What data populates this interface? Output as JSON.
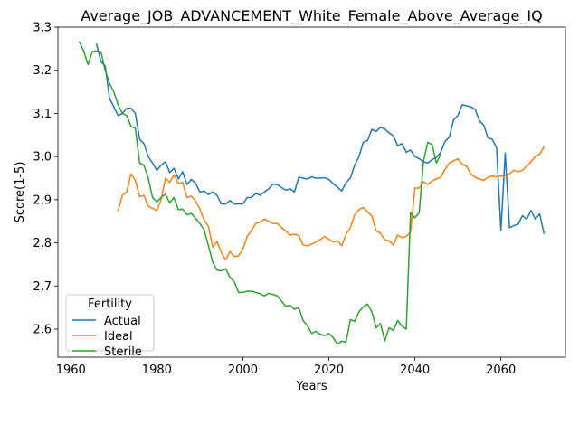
{
  "chart_data": {
    "type": "line",
    "title": "Average_JOB_ADVANCEMENT_White_Female_Above_Average_IQ",
    "xlabel": "Years",
    "ylabel": "Score(1-5)",
    "xlim": [
      1957,
      2075
    ],
    "ylim": [
      2.535,
      3.3
    ],
    "xticks": [
      1960,
      1980,
      2000,
      2020,
      2040,
      2060
    ],
    "yticks": [
      2.6,
      2.7,
      2.8,
      2.9,
      3.0,
      3.1,
      3.2,
      3.3
    ],
    "ytick_labels": [
      "2.6",
      "2.7",
      "2.8",
      "2.9",
      "3.0",
      "3.1",
      "3.2",
      "3.3"
    ],
    "grid": false,
    "legend": {
      "title": "Fertility",
      "position": "lower-left"
    },
    "series": [
      {
        "name": "Actual",
        "color": "#1f77b4",
        "x": [
          1966,
          1967,
          1968,
          1969,
          1970,
          1971,
          1972,
          1973,
          1974,
          1975,
          1976,
          1977,
          1978,
          1979,
          1980,
          1981,
          1982,
          1983,
          1984,
          1985,
          1986,
          1987,
          1988,
          1989,
          1990,
          1991,
          1992,
          1993,
          1994,
          1995,
          1996,
          1997,
          1998,
          1999,
          2000,
          2001,
          2002,
          2003,
          2004,
          2005,
          2006,
          2007,
          2008,
          2009,
          2010,
          2011,
          2012,
          2013,
          2014,
          2015,
          2016,
          2017,
          2018,
          2019,
          2020,
          2021,
          2022,
          2023,
          2024,
          2025,
          2026,
          2027,
          2028,
          2029,
          2030,
          2031,
          2032,
          2033,
          2034,
          2035,
          2036,
          2037,
          2038,
          2039,
          2040,
          2041,
          2042,
          2043,
          2044,
          2045,
          2046,
          2047,
          2048,
          2049,
          2050,
          2051,
          2052,
          2053,
          2054,
          2055,
          2056,
          2057,
          2058,
          2059,
          2060,
          2061,
          2062,
          2063,
          2064,
          2065,
          2066,
          2067,
          2068,
          2069,
          2070
        ],
        "values": [
          3.26,
          3.22,
          3.21,
          3.135,
          3.115,
          3.095,
          3.1,
          3.112,
          3.112,
          3.1,
          3.04,
          3.03,
          3.0,
          2.985,
          2.968,
          2.98,
          2.988,
          2.963,
          2.973,
          2.948,
          2.965,
          2.935,
          2.947,
          2.938,
          2.918,
          2.92,
          2.912,
          2.918,
          2.91,
          2.89,
          2.89,
          2.898,
          2.89,
          2.89,
          2.89,
          2.905,
          2.905,
          2.915,
          2.91,
          2.918,
          2.925,
          2.936,
          2.935,
          2.928,
          2.922,
          2.925,
          2.918,
          2.952,
          2.95,
          2.948,
          2.953,
          2.95,
          2.95,
          2.951,
          2.947,
          2.937,
          2.929,
          2.92,
          2.94,
          2.95,
          2.98,
          3.0,
          3.033,
          3.037,
          3.063,
          3.058,
          3.068,
          3.064,
          3.055,
          3.048,
          3.025,
          3.03,
          3.01,
          3.015,
          3.0,
          2.995,
          2.988,
          2.985,
          2.993,
          2.998,
          3.01,
          3.035,
          3.045,
          3.085,
          3.095,
          3.12,
          3.118,
          3.115,
          3.11,
          3.083,
          3.073,
          3.043,
          3.04,
          3.02,
          2.828,
          3.008,
          2.835,
          2.84,
          2.843,
          2.863,
          2.855,
          2.875,
          2.855,
          2.867,
          2.822
        ]
      },
      {
        "name": "Ideal",
        "color": "#ff7f0e",
        "x": [
          1971,
          1972,
          1973,
          1974,
          1975,
          1976,
          1977,
          1978,
          1979,
          1980,
          1981,
          1982,
          1983,
          1984,
          1985,
          1986,
          1987,
          1988,
          1989,
          1990,
          1991,
          1992,
          1993,
          1994,
          1995,
          1996,
          1997,
          1998,
          1999,
          2000,
          2001,
          2002,
          2003,
          2004,
          2005,
          2006,
          2007,
          2008,
          2009,
          2010,
          2011,
          2012,
          2013,
          2014,
          2015,
          2016,
          2017,
          2018,
          2019,
          2020,
          2021,
          2022,
          2023,
          2024,
          2025,
          2026,
          2027,
          2028,
          2029,
          2030,
          2031,
          2032,
          2033,
          2034,
          2035,
          2036,
          2037,
          2038,
          2039,
          2040,
          2041,
          2042,
          2043,
          2044,
          2045,
          2046,
          2047,
          2048,
          2049,
          2050,
          2051,
          2052,
          2053,
          2054,
          2055,
          2056,
          2057,
          2058,
          2059,
          2060,
          2061,
          2062,
          2063,
          2064,
          2065,
          2066,
          2067,
          2068,
          2069,
          2070
        ],
        "values": [
          2.875,
          2.91,
          2.918,
          2.96,
          2.945,
          2.907,
          2.91,
          2.885,
          2.88,
          2.875,
          2.9,
          2.95,
          2.94,
          2.958,
          2.937,
          2.94,
          2.905,
          2.908,
          2.897,
          2.878,
          2.853,
          2.838,
          2.79,
          2.803,
          2.778,
          2.76,
          2.78,
          2.768,
          2.77,
          2.785,
          2.815,
          2.828,
          2.845,
          2.848,
          2.855,
          2.85,
          2.845,
          2.845,
          2.835,
          2.827,
          2.818,
          2.82,
          2.817,
          2.795,
          2.793,
          2.797,
          2.802,
          2.807,
          2.815,
          2.808,
          2.802,
          2.805,
          2.793,
          2.82,
          2.835,
          2.865,
          2.877,
          2.882,
          2.872,
          2.862,
          2.828,
          2.822,
          2.807,
          2.805,
          2.795,
          2.818,
          2.812,
          2.815,
          2.825,
          2.927,
          2.927,
          2.942,
          2.935,
          2.943,
          2.948,
          2.952,
          2.97,
          2.985,
          2.99,
          2.995,
          2.982,
          2.978,
          2.96,
          2.952,
          2.948,
          2.945,
          2.952,
          2.955,
          2.953,
          2.955,
          2.955,
          2.96,
          2.968,
          2.965,
          2.968,
          2.978,
          2.988,
          3.0,
          3.005,
          3.022
        ]
      },
      {
        "name": "Sterile",
        "color": "#2ca02c",
        "x": [
          1962,
          1963,
          1964,
          1965,
          1966,
          1967,
          1968,
          1969,
          1970,
          1971,
          1972,
          1973,
          1974,
          1975,
          1976,
          1977,
          1978,
          1979,
          1980,
          1981,
          1982,
          1983,
          1984,
          1985,
          1986,
          1987,
          1988,
          1989,
          1990,
          1991,
          1992,
          1993,
          1994,
          1995,
          1996,
          1997,
          1998,
          1999,
          2000,
          2001,
          2002,
          2003,
          2004,
          2005,
          2006,
          2007,
          2008,
          2009,
          2010,
          2011,
          2012,
          2013,
          2014,
          2015,
          2016,
          2017,
          2018,
          2019,
          2020,
          2021,
          2022,
          2023,
          2024,
          2025,
          2026,
          2027,
          2028,
          2029,
          2030,
          2031,
          2032,
          2033,
          2034,
          2035,
          2036,
          2037,
          2038,
          2039,
          2040,
          2041,
          2042,
          2043,
          2044,
          2045,
          2046
        ],
        "values": [
          3.265,
          3.245,
          3.213,
          3.243,
          3.245,
          3.243,
          3.2,
          3.17,
          3.15,
          3.12,
          3.1,
          3.095,
          3.07,
          3.065,
          2.985,
          2.98,
          2.95,
          2.905,
          2.895,
          2.905,
          2.913,
          2.893,
          2.905,
          2.877,
          2.878,
          2.865,
          2.868,
          2.857,
          2.845,
          2.83,
          2.793,
          2.755,
          2.737,
          2.735,
          2.74,
          2.72,
          2.71,
          2.685,
          2.685,
          2.688,
          2.688,
          2.685,
          2.682,
          2.677,
          2.683,
          2.68,
          2.677,
          2.665,
          2.653,
          2.655,
          2.646,
          2.65,
          2.62,
          2.608,
          2.59,
          2.595,
          2.588,
          2.585,
          2.59,
          2.58,
          2.565,
          2.572,
          2.57,
          2.622,
          2.618,
          2.64,
          2.652,
          2.658,
          2.64,
          2.603,
          2.613,
          2.573,
          2.603,
          2.597,
          2.62,
          2.607,
          2.6,
          2.87,
          2.858,
          2.87,
          2.99,
          3.033,
          3.028,
          2.985,
          3.005
        ]
      }
    ]
  }
}
